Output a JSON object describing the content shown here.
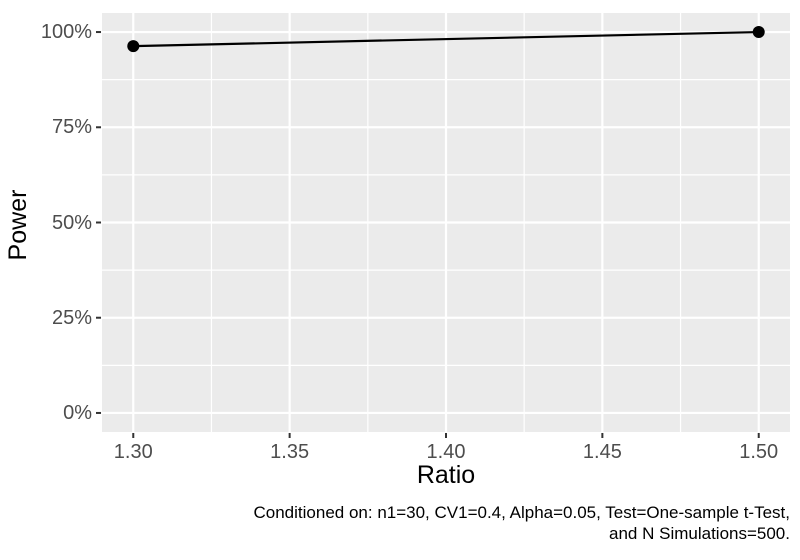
{
  "chart_data": {
    "type": "line",
    "xlabel": "Ratio",
    "ylabel": "Power",
    "x": [
      1.3,
      1.5
    ],
    "y_percent": [
      96.3,
      100
    ],
    "xlim": [
      1.29,
      1.51
    ],
    "ylim_percent": [
      -5,
      105
    ],
    "x_ticks": {
      "values": [
        1.3,
        1.35,
        1.4,
        1.45,
        1.5
      ],
      "labels": [
        "1.30",
        "1.35",
        "1.40",
        "1.45",
        "1.50"
      ]
    },
    "y_ticks": {
      "values": [
        0,
        25,
        50,
        75,
        100
      ],
      "labels": [
        "0%",
        "25%",
        "50%",
        "75%",
        "100%"
      ]
    },
    "x_minor": [
      1.325,
      1.375,
      1.425,
      1.475
    ],
    "y_minor_percent": [
      12.5,
      37.5,
      62.5,
      87.5
    ],
    "grid": "on",
    "legend": "none",
    "caption_lines": [
      "Conditioned on: n1=30, CV1=0.4, Alpha=0.05, Test=One-sample t-Test,",
      "and N Simulations=500."
    ],
    "colors": {
      "panel_background": "#EBEBEB",
      "grid": "#FFFFFF",
      "line": "#000000",
      "point": "#000000",
      "tick_mark": "#333333",
      "tick_label": "#4D4D4D",
      "axis_title": "#000000",
      "caption": "#000000",
      "figure_background": "#FFFFFF"
    }
  }
}
